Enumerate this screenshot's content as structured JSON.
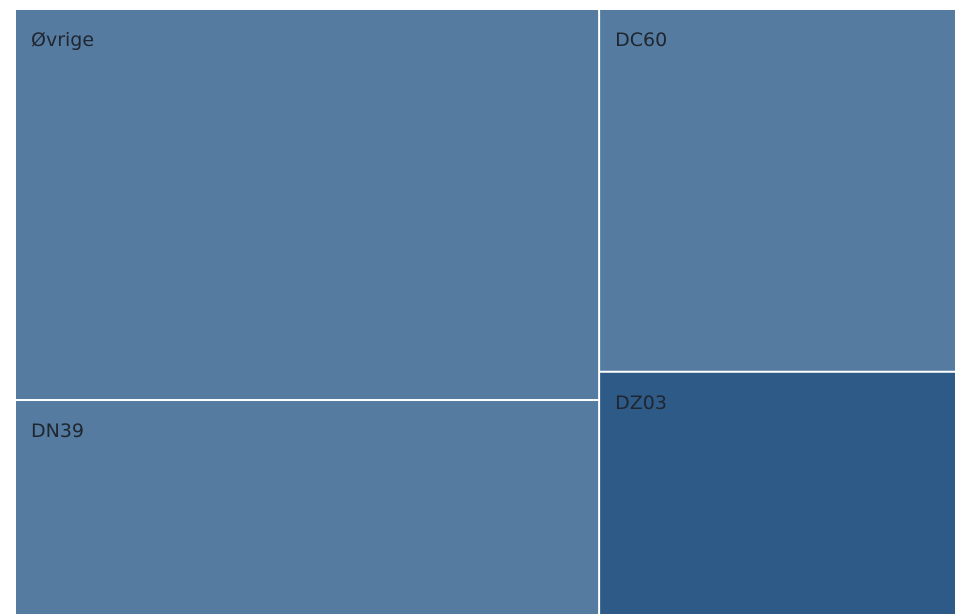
{
  "chart_data": {
    "type": "treemap",
    "tiles": [
      {
        "name": "Øvrige",
        "value": 40.1,
        "color": "#557ba0"
      },
      {
        "name": "DN39",
        "value": 22.0,
        "color": "#557ba0"
      },
      {
        "name": "DC60",
        "value": 22.7,
        "color": "#557ba0"
      },
      {
        "name": "DZ03",
        "value": 15.2,
        "color": "#2e5a87"
      }
    ]
  }
}
